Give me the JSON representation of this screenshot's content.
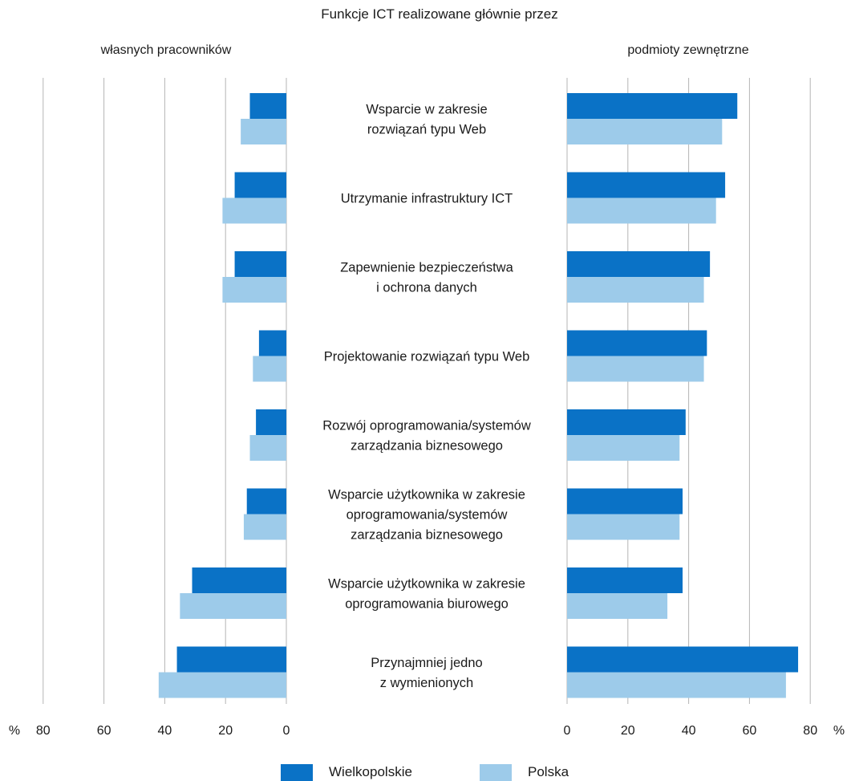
{
  "chart_data": {
    "type": "bar",
    "title": "Funkcje ICT realizowane głównie przez",
    "left_panel": {
      "label": "własnych pracowników",
      "xlim": [
        0,
        80
      ],
      "ticks": [
        80,
        60,
        40,
        20,
        0
      ]
    },
    "right_panel": {
      "label": "podmioty zewnętrzne",
      "xlim": [
        0,
        80
      ],
      "ticks": [
        0,
        20,
        40,
        60,
        80
      ]
    },
    "unit": "%",
    "categories": [
      [
        "Wsparcie w zakresie",
        "rozwiązań typu Web"
      ],
      [
        "Utrzymanie infrastruktury ICT"
      ],
      [
        "Zapewnienie bezpieczeństwa",
        "i ochrona danych"
      ],
      [
        "Projektowanie rozwiązań typu Web"
      ],
      [
        "Rozwój oprogramowania/systemów",
        "zarządzania biznesowego"
      ],
      [
        "Wsparcie użytkownika w zakresie",
        "oprogramowania/systemów",
        "zarządzania biznesowego"
      ],
      [
        "Wsparcie użytkownika w zakresie",
        "oprogramowania biurowego"
      ],
      [
        "Przynajmniej jedno",
        "z wymienionych"
      ]
    ],
    "series": [
      {
        "name": "Wielkopolskie",
        "color": "#0a72c6",
        "own": [
          12,
          17,
          17,
          9,
          10,
          13,
          31,
          36
        ],
        "external": [
          56,
          52,
          47,
          46,
          39,
          38,
          38,
          76
        ]
      },
      {
        "name": "Polska",
        "color": "#9dcbea",
        "own": [
          15,
          21,
          21,
          11,
          12,
          14,
          35,
          42
        ],
        "external": [
          51,
          49,
          45,
          45,
          37,
          37,
          33,
          72
        ]
      }
    ],
    "grid": true,
    "legend_position": "bottom"
  }
}
